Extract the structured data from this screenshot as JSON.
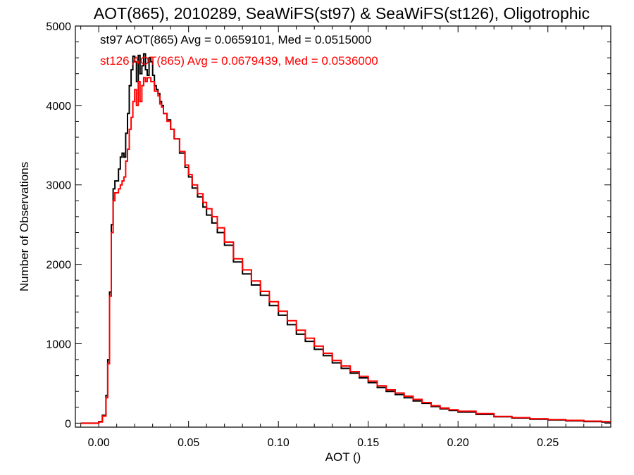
{
  "chart_data": {
    "type": "line",
    "style": "step",
    "title": "AOT(865), 2010289, SeaWiFS(st97) & SeaWiFS(st126), Oligotrophic",
    "xlabel": "AOT ()",
    "ylabel": "Number of Observations",
    "xlim": [
      -0.013,
      0.285
    ],
    "ylim": [
      -50,
      5000
    ],
    "xticks": [
      0.0,
      0.05,
      0.1,
      0.15,
      0.2,
      0.25
    ],
    "xtick_labels": [
      "0.00",
      "0.05",
      "0.10",
      "0.15",
      "0.20",
      "0.25"
    ],
    "yticks": [
      0,
      1000,
      2000,
      3000,
      4000,
      5000
    ],
    "ytick_labels": [
      "0",
      "1000",
      "2000",
      "3000",
      "4000",
      "5000"
    ],
    "grid": false,
    "annotations": [
      {
        "text": "st97 AOT(865) Avg = 0.0659101, Med = 0.0515000",
        "color": "#000000"
      },
      {
        "text": "st126 AOT(865) Avg = 0.0679439, Med = 0.0536000",
        "color": "#ff0000"
      }
    ],
    "series": [
      {
        "color": "#000000",
        "x": [
          -0.01,
          0.0,
          0.002,
          0.004,
          0.005,
          0.006,
          0.007,
          0.008,
          0.009,
          0.01,
          0.011,
          0.012,
          0.013,
          0.014,
          0.015,
          0.016,
          0.017,
          0.018,
          0.019,
          0.02,
          0.021,
          0.022,
          0.023,
          0.024,
          0.025,
          0.026,
          0.027,
          0.028,
          0.029,
          0.03,
          0.031,
          0.032,
          0.033,
          0.034,
          0.035,
          0.036,
          0.038,
          0.04,
          0.042,
          0.045,
          0.048,
          0.05,
          0.052,
          0.055,
          0.058,
          0.06,
          0.063,
          0.066,
          0.07,
          0.075,
          0.08,
          0.085,
          0.09,
          0.095,
          0.1,
          0.105,
          0.11,
          0.115,
          0.12,
          0.125,
          0.13,
          0.135,
          0.14,
          0.145,
          0.15,
          0.155,
          0.16,
          0.165,
          0.17,
          0.175,
          0.18,
          0.185,
          0.19,
          0.195,
          0.2,
          0.21,
          0.22,
          0.23,
          0.24,
          0.25,
          0.26,
          0.27,
          0.28
        ],
        "y": [
          0,
          20,
          100,
          350,
          800,
          1650,
          2500,
          2950,
          3050,
          3050,
          3200,
          3350,
          3400,
          3350,
          3650,
          3900,
          4250,
          4450,
          4620,
          4550,
          4300,
          4630,
          4400,
          4500,
          4650,
          4450,
          4380,
          4600,
          4550,
          4380,
          4250,
          4200,
          4150,
          4050,
          4000,
          3900,
          3820,
          3700,
          3580,
          3400,
          3220,
          3100,
          2960,
          2850,
          2720,
          2620,
          2520,
          2400,
          2240,
          2030,
          1880,
          1740,
          1610,
          1480,
          1360,
          1240,
          1120,
          1030,
          930,
          850,
          760,
          690,
          630,
          570,
          510,
          450,
          400,
          360,
          320,
          280,
          250,
          210,
          180,
          160,
          140,
          110,
          80,
          65,
          50,
          40,
          30,
          20,
          15
        ]
      },
      {
        "color": "#ff0000",
        "x": [
          -0.01,
          0.0,
          0.002,
          0.004,
          0.005,
          0.006,
          0.007,
          0.008,
          0.009,
          0.01,
          0.011,
          0.012,
          0.013,
          0.014,
          0.015,
          0.016,
          0.017,
          0.018,
          0.019,
          0.02,
          0.021,
          0.022,
          0.023,
          0.024,
          0.025,
          0.026,
          0.027,
          0.028,
          0.029,
          0.03,
          0.031,
          0.032,
          0.033,
          0.034,
          0.035,
          0.036,
          0.038,
          0.04,
          0.042,
          0.045,
          0.048,
          0.05,
          0.052,
          0.055,
          0.058,
          0.06,
          0.063,
          0.066,
          0.07,
          0.075,
          0.08,
          0.085,
          0.09,
          0.095,
          0.1,
          0.105,
          0.11,
          0.115,
          0.12,
          0.125,
          0.13,
          0.135,
          0.14,
          0.145,
          0.15,
          0.155,
          0.16,
          0.165,
          0.17,
          0.175,
          0.18,
          0.185,
          0.19,
          0.195,
          0.2,
          0.21,
          0.22,
          0.23,
          0.24,
          0.25,
          0.26,
          0.27,
          0.28
        ],
        "y": [
          0,
          15,
          90,
          320,
          750,
          1600,
          2400,
          2800,
          2900,
          2900,
          2950,
          3000,
          3050,
          3100,
          3300,
          3450,
          3700,
          3850,
          4050,
          4200,
          4000,
          4300,
          4050,
          4250,
          4350,
          4300,
          4350,
          4350,
          4300,
          4300,
          4180,
          4180,
          4120,
          4020,
          3980,
          3900,
          3800,
          3700,
          3580,
          3420,
          3250,
          3130,
          3000,
          2890,
          2780,
          2700,
          2600,
          2460,
          2280,
          2070,
          1930,
          1790,
          1660,
          1530,
          1410,
          1290,
          1170,
          1070,
          970,
          880,
          790,
          720,
          650,
          590,
          530,
          470,
          420,
          380,
          340,
          300,
          260,
          220,
          190,
          170,
          150,
          120,
          85,
          70,
          55,
          45,
          35,
          25,
          20
        ]
      }
    ]
  }
}
